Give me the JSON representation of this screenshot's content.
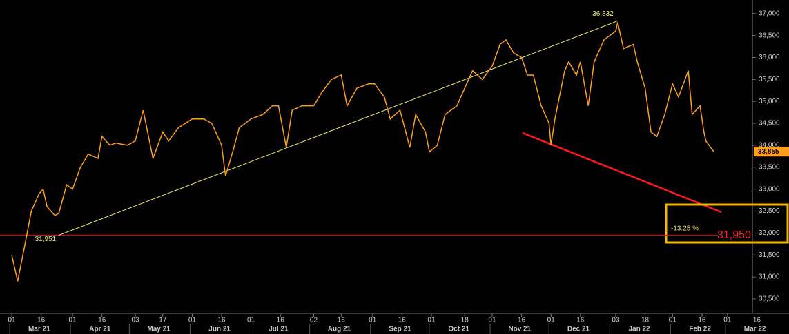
{
  "chart_data": {
    "type": "line",
    "color": "#ff9f1a",
    "x": [
      "2021-03-01",
      "2021-03-04",
      "2021-03-08",
      "2021-03-11",
      "2021-03-15",
      "2021-03-17",
      "2021-03-19",
      "2021-03-23",
      "2021-03-25",
      "2021-03-29",
      "2021-04-01",
      "2021-04-05",
      "2021-04-09",
      "2021-04-14",
      "2021-04-16",
      "2021-04-20",
      "2021-04-23",
      "2021-04-29",
      "2021-05-03",
      "2021-05-07",
      "2021-05-12",
      "2021-05-17",
      "2021-05-20",
      "2021-05-25",
      "2021-06-01",
      "2021-06-07",
      "2021-06-11",
      "2021-06-16",
      "2021-06-18",
      "2021-06-22",
      "2021-06-25",
      "2021-07-01",
      "2021-07-07",
      "2021-07-12",
      "2021-07-15",
      "2021-07-19",
      "2021-07-22",
      "2021-07-27",
      "2021-08-02",
      "2021-08-06",
      "2021-08-11",
      "2021-08-16",
      "2021-08-19",
      "2021-08-24",
      "2021-08-30",
      "2021-09-02",
      "2021-09-07",
      "2021-09-10",
      "2021-09-15",
      "2021-09-20",
      "2021-09-23",
      "2021-09-28",
      "2021-09-30",
      "2021-10-04",
      "2021-10-08",
      "2021-10-14",
      "2021-10-18",
      "2021-10-22",
      "2021-10-27",
      "2021-11-01",
      "2021-11-05",
      "2021-11-08",
      "2021-11-12",
      "2021-11-16",
      "2021-11-19",
      "2021-11-22",
      "2021-11-26",
      "2021-11-30",
      "2021-12-01",
      "2021-12-03",
      "2021-12-08",
      "2021-12-10",
      "2021-12-14",
      "2021-12-16",
      "2021-12-20",
      "2021-12-23",
      "2021-12-28",
      "2022-01-03",
      "2022-01-04",
      "2022-01-07",
      "2022-01-12",
      "2022-01-14",
      "2022-01-18",
      "2022-01-21",
      "2022-01-24",
      "2022-01-28",
      "2022-02-01",
      "2022-02-04",
      "2022-02-09",
      "2022-02-11",
      "2022-02-15",
      "2022-02-17",
      "2022-02-18",
      "2022-02-22"
    ],
    "values": [
      31500,
      30900,
      31800,
      32500,
      32900,
      33000,
      32600,
      32400,
      32450,
      33100,
      33000,
      33500,
      33800,
      33700,
      34200,
      34000,
      34050,
      34000,
      34100,
      34800,
      33700,
      34300,
      34100,
      34400,
      34600,
      34600,
      34500,
      34000,
      33300,
      33900,
      34400,
      34600,
      34700,
      34900,
      34900,
      33950,
      34800,
      34900,
      34900,
      35200,
      35500,
      35600,
      34900,
      35300,
      35400,
      35400,
      35100,
      34600,
      34800,
      33950,
      34700,
      34300,
      33850,
      34000,
      34700,
      34900,
      35300,
      35700,
      35500,
      35800,
      36300,
      36400,
      36100,
      36000,
      35600,
      35600,
      34900,
      34500,
      34000,
      34600,
      35700,
      35900,
      35600,
      35900,
      34900,
      35900,
      36400,
      36600,
      36800,
      36200,
      36300,
      35900,
      35300,
      34300,
      34200,
      34700,
      35400,
      35100,
      35700,
      34700,
      34900,
      34300,
      34100,
      33855
    ],
    "last_label": "33,855",
    "xlim": [
      "2021-02-23",
      "2022-03-19"
    ],
    "ylim": [
      30170,
      37310
    ],
    "yticks": [
      {
        "value": 30500,
        "label": "30,500"
      },
      {
        "value": 31000,
        "label": "31,000"
      },
      {
        "value": 31500,
        "label": "31,500"
      },
      {
        "value": 32000,
        "label": "32,000"
      },
      {
        "value": 32500,
        "label": "32,500"
      },
      {
        "value": 33000,
        "label": "33,000"
      },
      {
        "value": 33500,
        "label": "33,500"
      },
      {
        "value": 34000,
        "label": "34,000"
      },
      {
        "value": 34500,
        "label": "34,500"
      },
      {
        "value": 35000,
        "label": "35,000"
      },
      {
        "value": 35500,
        "label": "35,500"
      },
      {
        "value": 36000,
        "label": "36,000"
      },
      {
        "value": 36500,
        "label": "36,500"
      },
      {
        "value": 37000,
        "label": "37,000"
      }
    ],
    "xticks": [
      {
        "value": "2021-03-01",
        "label": "01"
      },
      {
        "value": "2021-03-16",
        "label": "16"
      },
      {
        "value": "2021-04-01",
        "label": "01"
      },
      {
        "value": "2021-04-16",
        "label": "16"
      },
      {
        "value": "2021-05-03",
        "label": "03"
      },
      {
        "value": "2021-05-17",
        "label": "17"
      },
      {
        "value": "2021-06-01",
        "label": "01"
      },
      {
        "value": "2021-06-16",
        "label": "16"
      },
      {
        "value": "2021-07-01",
        "label": "01"
      },
      {
        "value": "2021-07-16",
        "label": "16"
      },
      {
        "value": "2021-08-02",
        "label": "02"
      },
      {
        "value": "2021-08-16",
        "label": "16"
      },
      {
        "value": "2021-09-01",
        "label": "01"
      },
      {
        "value": "2021-09-16",
        "label": "16"
      },
      {
        "value": "2021-10-01",
        "label": "01"
      },
      {
        "value": "2021-10-18",
        "label": "18"
      },
      {
        "value": "2021-11-01",
        "label": "01"
      },
      {
        "value": "2021-11-16",
        "label": "16"
      },
      {
        "value": "2021-12-01",
        "label": "01"
      },
      {
        "value": "2021-12-16",
        "label": "16"
      },
      {
        "value": "2022-01-03",
        "label": "03"
      },
      {
        "value": "2022-01-18",
        "label": "18"
      },
      {
        "value": "2022-02-01",
        "label": "01"
      },
      {
        "value": "2022-02-16",
        "label": "16"
      },
      {
        "value": "2022-03-01",
        "label": "01"
      },
      {
        "value": "2022-03-16",
        "label": "16"
      }
    ],
    "months": [
      {
        "value": "2021-03",
        "label": "Mar 21"
      },
      {
        "value": "2021-04",
        "label": "Apr 21"
      },
      {
        "value": "2021-05",
        "label": "May 21"
      },
      {
        "value": "2021-06",
        "label": "Jun 21"
      },
      {
        "value": "2021-07",
        "label": "Jul 21"
      },
      {
        "value": "2021-08",
        "label": "Aug 21"
      },
      {
        "value": "2021-09",
        "label": "Sep 21"
      },
      {
        "value": "2021-10",
        "label": "Oct 21"
      },
      {
        "value": "2021-11",
        "label": "Nov 21"
      },
      {
        "value": "2021-12",
        "label": "Dec 21"
      },
      {
        "value": "2022-01",
        "label": "Jan 22"
      },
      {
        "value": "2022-02",
        "label": "Feb 22"
      },
      {
        "value": "2022-03",
        "label": "Mar 22"
      }
    ],
    "trend_points": [
      {
        "x": "2021-03-25",
        "value": 31951,
        "label": "31,951"
      },
      {
        "x": "2022-01-04",
        "value": 36832,
        "label": "36,832"
      }
    ],
    "level": {
      "value": 31950,
      "label": "31,950"
    },
    "change_label": "-13.25 %"
  }
}
